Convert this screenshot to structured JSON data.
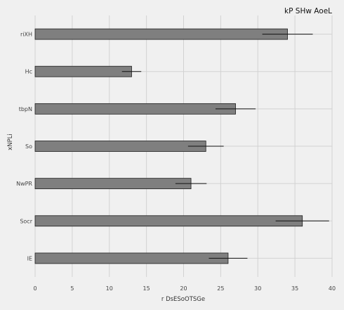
{
  "chart_data": {
    "type": "bar",
    "orientation": "horizontal",
    "title": "kP SHw AoeL",
    "xlabel": "r  DsESoOTSGe",
    "ylabel": "xNPLi",
    "categories": [
      "riXH",
      "Hc",
      "tbpN",
      "So",
      "NwPR",
      "Socr",
      "IE"
    ],
    "values": [
      34,
      13,
      27,
      23,
      21,
      36,
      26
    ],
    "errors": [
      3.4,
      1.3,
      2.7,
      2.4,
      2.1,
      3.6,
      2.6
    ],
    "xlim": [
      0,
      40
    ],
    "xticks": [
      0,
      5,
      10,
      15,
      20,
      25,
      30,
      35,
      40
    ],
    "grid": true,
    "colors": {
      "bar": "#7f7f7f",
      "edge": "#1e1e1e",
      "background": "#f0f0f0",
      "grid": "#d2d2d2"
    }
  }
}
